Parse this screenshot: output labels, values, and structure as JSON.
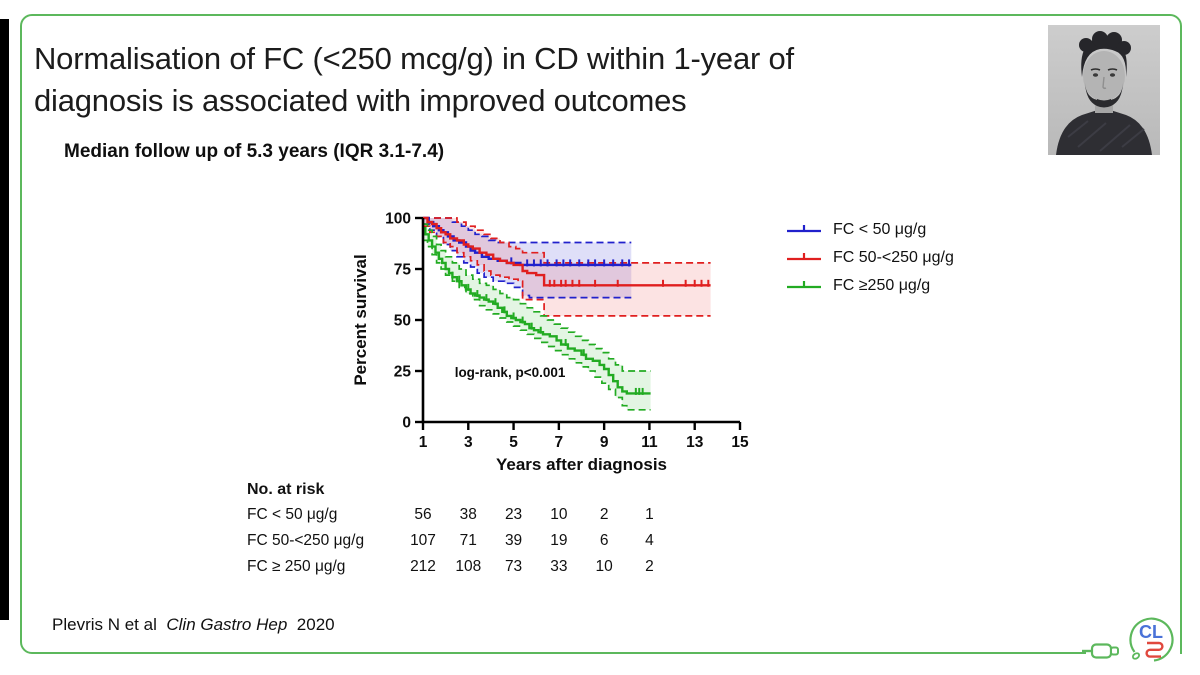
{
  "slide": {
    "title_line1": "Normalisation of FC (<250 mcg/g) in CD within 1-year of",
    "title_line2": "diagnosis is associated with improved outcomes",
    "subtitle": "Median follow up of 5.3 years (IQR 3.1-7.4)",
    "citation": {
      "prefix": "Plevris N et al",
      "journal": "Clin Gastro Hep",
      "year": "2020"
    },
    "logo_text": "CL",
    "colors": {
      "border_green": "#5cb85c",
      "logo_blue": "#4a72d8",
      "logo_red": "#e0483e"
    }
  },
  "chart_data": {
    "type": "line",
    "subtype": "kaplan-meier-step",
    "title": "",
    "xlabel": "Years after diagnosis",
    "ylabel": "Percent survival",
    "xlim": [
      1,
      15
    ],
    "ylim": [
      0,
      100
    ],
    "xticks": [
      1,
      3,
      5,
      7,
      9,
      11,
      13,
      15
    ],
    "yticks": [
      0,
      25,
      50,
      75,
      100
    ],
    "grid": false,
    "legend_position": "right",
    "annotation": {
      "text": "log-rank, p<0.001",
      "x": 2.4,
      "y": 22
    },
    "series": [
      {
        "name": "FC < 50 μg/g",
        "color": "#2121cc",
        "fill": "rgba(80,80,215,0.18)",
        "steps": [
          [
            1,
            100
          ],
          [
            1.25,
            98
          ],
          [
            1.45,
            96
          ],
          [
            1.7,
            94
          ],
          [
            1.9,
            93
          ],
          [
            2.1,
            91
          ],
          [
            2.35,
            89
          ],
          [
            2.6,
            88
          ],
          [
            2.9,
            86
          ],
          [
            3.1,
            84
          ],
          [
            3.3,
            83
          ],
          [
            3.6,
            81
          ],
          [
            3.9,
            80
          ],
          [
            4.3,
            79
          ],
          [
            4.7,
            78
          ],
          [
            5.3,
            77
          ],
          [
            10.2,
            77
          ]
        ],
        "upper": [
          [
            1,
            100
          ],
          [
            2.0,
            100
          ],
          [
            2.3,
            98
          ],
          [
            2.7,
            96
          ],
          [
            3.0,
            94
          ],
          [
            3.3,
            92
          ],
          [
            3.6,
            91
          ],
          [
            3.9,
            89
          ],
          [
            4.2,
            88
          ],
          [
            10.2,
            88
          ]
        ],
        "lower": [
          [
            1,
            97
          ],
          [
            1.3,
            94
          ],
          [
            1.6,
            91
          ],
          [
            1.9,
            87
          ],
          [
            2.2,
            84
          ],
          [
            2.5,
            81
          ],
          [
            2.8,
            78
          ],
          [
            3.1,
            76
          ],
          [
            3.4,
            73
          ],
          [
            3.7,
            71
          ],
          [
            4.1,
            69
          ],
          [
            4.6,
            68
          ],
          [
            5.0,
            66
          ],
          [
            5.4,
            62
          ],
          [
            5.7,
            61
          ],
          [
            10.2,
            61
          ]
        ],
        "censor_x": [
          4.9,
          5.6,
          5.9,
          6.2,
          6.5,
          6.9,
          7.2,
          7.5,
          7.9,
          8.3,
          8.6,
          9.0,
          9.4,
          9.8,
          10.1
        ]
      },
      {
        "name": "FC 50-<250 μg/g",
        "color": "#e01f1f",
        "fill": "rgba(235,80,80,0.16)",
        "steps": [
          [
            1,
            100
          ],
          [
            1.2,
            98
          ],
          [
            1.4,
            97
          ],
          [
            1.6,
            95
          ],
          [
            1.8,
            93
          ],
          [
            2.0,
            92
          ],
          [
            2.2,
            90
          ],
          [
            2.5,
            89
          ],
          [
            2.8,
            87
          ],
          [
            3.0,
            86
          ],
          [
            3.2,
            85
          ],
          [
            3.5,
            83
          ],
          [
            3.8,
            82
          ],
          [
            4.1,
            80
          ],
          [
            4.4,
            79
          ],
          [
            4.7,
            78
          ],
          [
            5.0,
            77
          ],
          [
            5.4,
            74
          ],
          [
            5.6,
            73
          ],
          [
            6.0,
            72
          ],
          [
            6.35,
            67
          ],
          [
            13.7,
            67
          ]
        ],
        "upper": [
          [
            1,
            100
          ],
          [
            2.2,
            100
          ],
          [
            2.5,
            98
          ],
          [
            2.9,
            96
          ],
          [
            3.3,
            94
          ],
          [
            3.7,
            92
          ],
          [
            4.0,
            90
          ],
          [
            4.4,
            88
          ],
          [
            4.8,
            86
          ],
          [
            5.1,
            85
          ],
          [
            5.4,
            83
          ],
          [
            6.35,
            78
          ],
          [
            13.7,
            78
          ]
        ],
        "lower": [
          [
            1,
            96
          ],
          [
            1.3,
            93
          ],
          [
            1.6,
            91
          ],
          [
            1.9,
            88
          ],
          [
            2.2,
            86
          ],
          [
            2.5,
            83
          ],
          [
            2.8,
            81
          ],
          [
            3.1,
            79
          ],
          [
            3.4,
            77
          ],
          [
            3.7,
            74
          ],
          [
            4.0,
            72
          ],
          [
            4.4,
            71
          ],
          [
            4.8,
            70
          ],
          [
            5.2,
            69
          ],
          [
            5.4,
            60
          ],
          [
            6.35,
            52
          ],
          [
            13.7,
            52
          ]
        ],
        "censor_x": [
          6.6,
          6.8,
          7.1,
          7.3,
          7.6,
          7.9,
          8.6,
          9.6,
          11.6,
          12.6,
          13.0,
          13.3,
          13.6
        ]
      },
      {
        "name": "FC ≥250 μg/g",
        "color": "#22ab22",
        "fill": "rgba(80,190,80,0.16)",
        "steps": [
          [
            1,
            95
          ],
          [
            1.1,
            92
          ],
          [
            1.25,
            89
          ],
          [
            1.4,
            86
          ],
          [
            1.55,
            83
          ],
          [
            1.7,
            80
          ],
          [
            1.85,
            78
          ],
          [
            2.0,
            75
          ],
          [
            2.15,
            73
          ],
          [
            2.3,
            71
          ],
          [
            2.5,
            69
          ],
          [
            2.7,
            67
          ],
          [
            2.9,
            65
          ],
          [
            3.1,
            63
          ],
          [
            3.3,
            62
          ],
          [
            3.5,
            61
          ],
          [
            3.7,
            60
          ],
          [
            3.9,
            59
          ],
          [
            4.1,
            58
          ],
          [
            4.3,
            56
          ],
          [
            4.5,
            54
          ],
          [
            4.7,
            52
          ],
          [
            4.9,
            51
          ],
          [
            5.1,
            50
          ],
          [
            5.3,
            49
          ],
          [
            5.5,
            48
          ],
          [
            5.7,
            46
          ],
          [
            5.9,
            45
          ],
          [
            6.1,
            44
          ],
          [
            6.3,
            43
          ],
          [
            6.6,
            42
          ],
          [
            6.9,
            40
          ],
          [
            7.1,
            38
          ],
          [
            7.4,
            36
          ],
          [
            7.7,
            35
          ],
          [
            8.0,
            33
          ],
          [
            8.2,
            31
          ],
          [
            8.5,
            30
          ],
          [
            8.8,
            28
          ],
          [
            9.0,
            26
          ],
          [
            9.2,
            23
          ],
          [
            9.4,
            20
          ],
          [
            9.6,
            17
          ],
          [
            9.8,
            15
          ],
          [
            10.0,
            14
          ],
          [
            11.05,
            14
          ]
        ],
        "upper": [
          [
            1,
            97
          ],
          [
            1.2,
            94
          ],
          [
            1.4,
            91
          ],
          [
            1.6,
            87
          ],
          [
            1.8,
            84
          ],
          [
            2.0,
            81
          ],
          [
            2.3,
            78
          ],
          [
            2.6,
            75
          ],
          [
            2.9,
            72
          ],
          [
            3.2,
            70
          ],
          [
            3.5,
            68
          ],
          [
            3.8,
            67
          ],
          [
            4.1,
            65
          ],
          [
            4.4,
            63
          ],
          [
            4.7,
            61
          ],
          [
            5.0,
            60
          ],
          [
            5.3,
            58
          ],
          [
            5.6,
            56
          ],
          [
            5.9,
            54
          ],
          [
            6.2,
            52
          ],
          [
            6.5,
            50
          ],
          [
            6.8,
            48
          ],
          [
            7.1,
            46
          ],
          [
            7.4,
            44
          ],
          [
            7.7,
            42
          ],
          [
            8.0,
            40
          ],
          [
            8.3,
            38
          ],
          [
            8.6,
            36
          ],
          [
            8.9,
            34
          ],
          [
            9.2,
            31
          ],
          [
            9.5,
            28
          ],
          [
            9.8,
            25
          ],
          [
            11.05,
            25
          ]
        ],
        "lower": [
          [
            1,
            89
          ],
          [
            1.2,
            86
          ],
          [
            1.4,
            82
          ],
          [
            1.6,
            78
          ],
          [
            1.8,
            75
          ],
          [
            2.0,
            72
          ],
          [
            2.3,
            69
          ],
          [
            2.6,
            66
          ],
          [
            2.9,
            63
          ],
          [
            3.2,
            60
          ],
          [
            3.5,
            57
          ],
          [
            3.8,
            55
          ],
          [
            4.1,
            53
          ],
          [
            4.4,
            51
          ],
          [
            4.7,
            49
          ],
          [
            5.0,
            47
          ],
          [
            5.3,
            45
          ],
          [
            5.6,
            43
          ],
          [
            5.9,
            41
          ],
          [
            6.2,
            39
          ],
          [
            6.5,
            37
          ],
          [
            6.8,
            35
          ],
          [
            7.1,
            33
          ],
          [
            7.4,
            31
          ],
          [
            7.7,
            29
          ],
          [
            8.0,
            27
          ],
          [
            8.3,
            25
          ],
          [
            8.6,
            22
          ],
          [
            8.9,
            19
          ],
          [
            9.2,
            16
          ],
          [
            9.5,
            12
          ],
          [
            9.8,
            8
          ],
          [
            10.0,
            6
          ],
          [
            11.05,
            6
          ]
        ],
        "censor_x": [
          2.3,
          2.6,
          3.0,
          3.4,
          3.8,
          4.2,
          4.6,
          5.0,
          5.4,
          5.8,
          6.2,
          7.3,
          8.1,
          10.4,
          10.55,
          10.7
        ]
      }
    ]
  },
  "risk_table": {
    "header": "No. at risk",
    "years": [
      1,
      3,
      5,
      7,
      9,
      11
    ],
    "rows": [
      {
        "label": "FC < 50 μg/g",
        "values": [
          56,
          38,
          23,
          10,
          2,
          1
        ]
      },
      {
        "label": "FC 50-<250 μg/g",
        "values": [
          107,
          71,
          39,
          19,
          6,
          4
        ]
      },
      {
        "label": "FC ≥ 250 μg/g",
        "values": [
          212,
          108,
          73,
          33,
          10,
          2
        ]
      }
    ]
  }
}
